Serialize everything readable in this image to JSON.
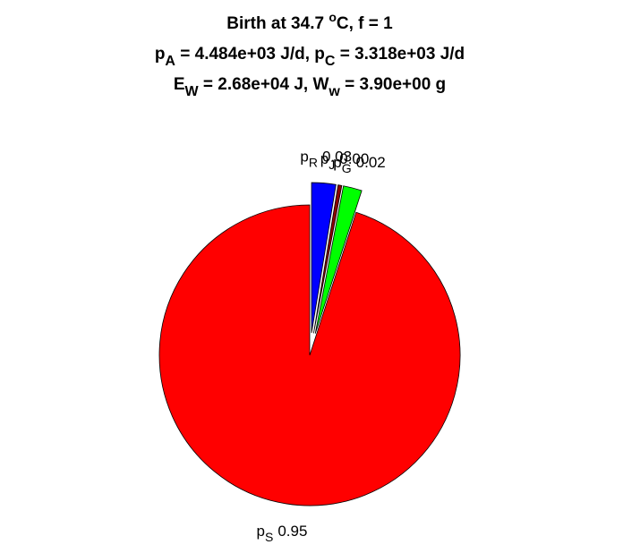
{
  "chart_data": {
    "type": "pie",
    "title": [
      [
        {
          "text": "Birth at 34.7 "
        },
        {
          "text": "o",
          "shift": "super"
        },
        {
          "text": "C, f = 1"
        }
      ],
      [
        {
          "text": "p"
        },
        {
          "text": "A",
          "shift": "sub"
        },
        {
          "text": " = 4.484e+03 J/d, p"
        },
        {
          "text": "C",
          "shift": "sub"
        },
        {
          "text": " = 3.318e+03 J/d"
        }
      ],
      [
        {
          "text": "E"
        },
        {
          "text": "W",
          "shift": "sub"
        },
        {
          "text": " = 2.68e+04 J, W"
        },
        {
          "text": "w",
          "shift": "sub"
        },
        {
          "text": " = 3.90e+00 g"
        }
      ]
    ],
    "categories": [
      {
        "base": "p",
        "sub": "R"
      },
      {
        "base": "p",
        "sub": "J"
      },
      {
        "base": "p",
        "sub": "G"
      },
      {
        "base": "p",
        "sub": "S"
      }
    ],
    "values": [
      0.026,
      0.004,
      0.02,
      0.95
    ],
    "value_labels": [
      "0.03",
      "0.00",
      "0.02",
      "0.95"
    ],
    "colors": [
      "#0000ff",
      "#8b0000",
      "#00ff00",
      "#ff0000"
    ],
    "explode": [
      true,
      true,
      true,
      false
    ]
  }
}
